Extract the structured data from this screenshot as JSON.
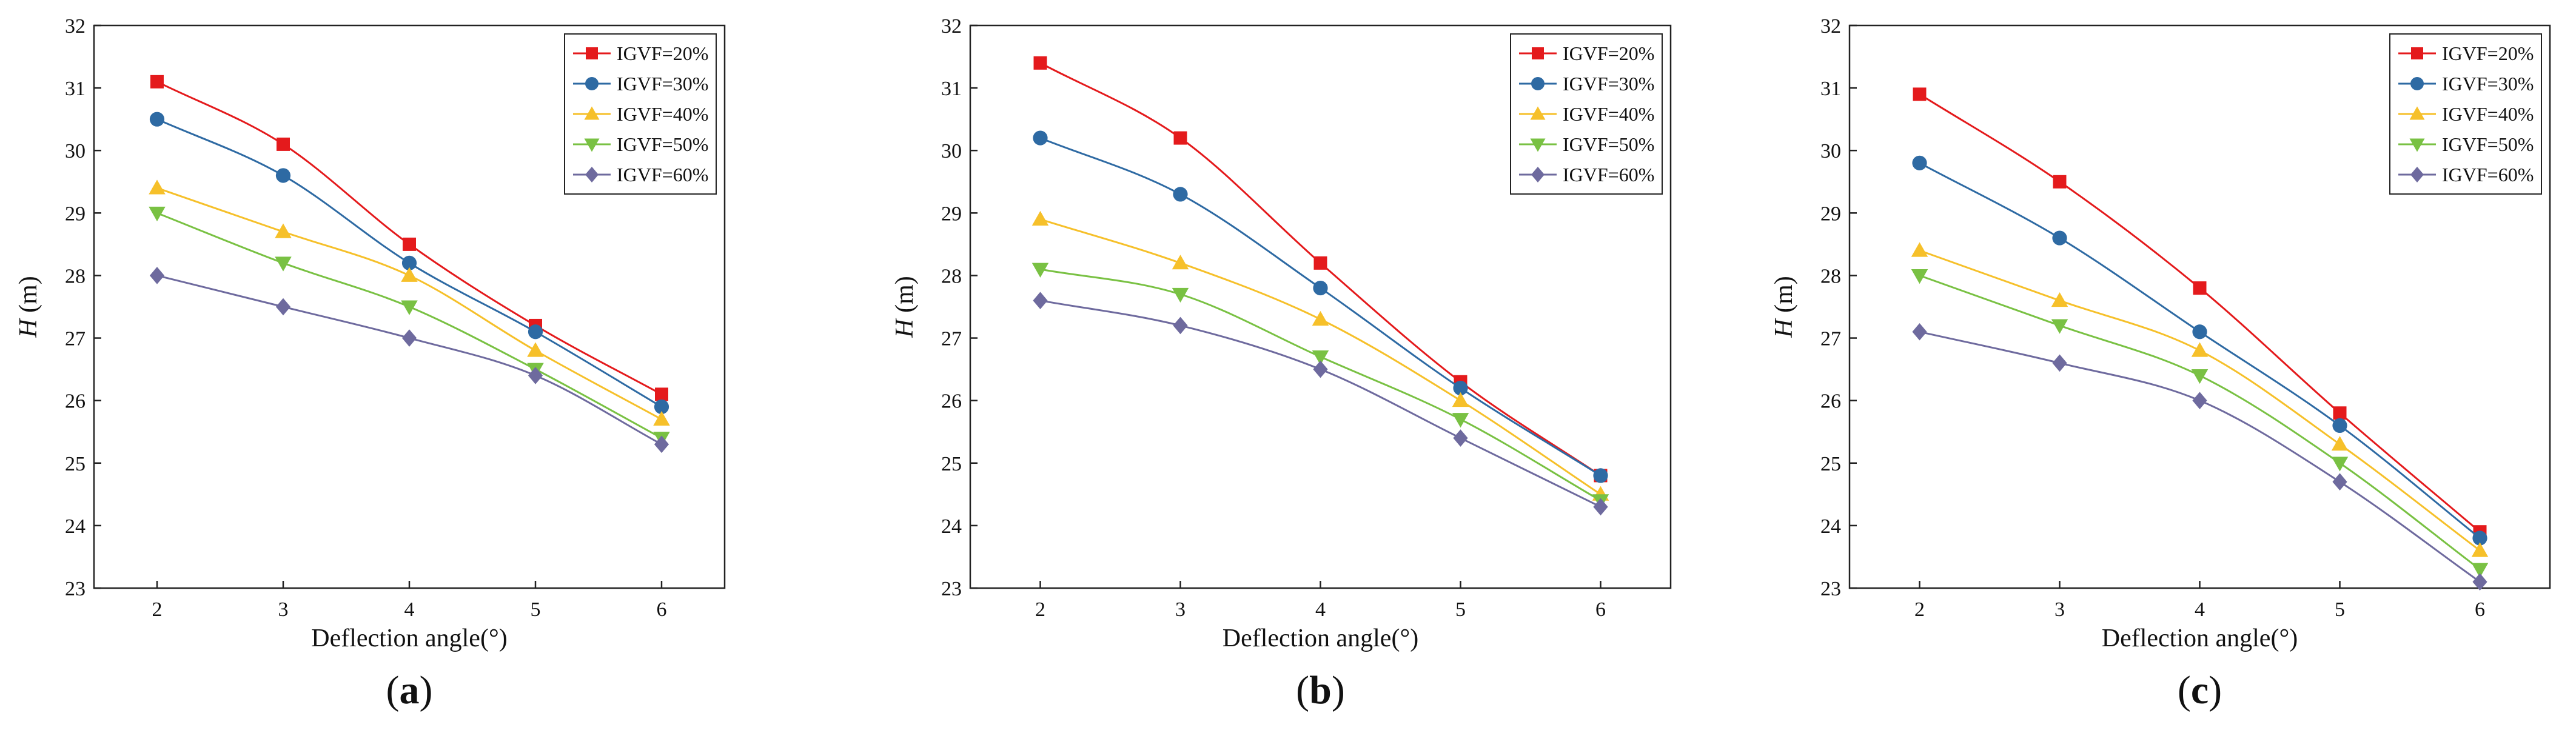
{
  "figure": {
    "panel_labels": [
      "a",
      "b",
      "c"
    ]
  },
  "series_styles": [
    {
      "name": "IGVF=20%",
      "color": "#e41a1c",
      "marker": "square"
    },
    {
      "name": "IGVF=30%",
      "color": "#2e6aa3",
      "marker": "circle"
    },
    {
      "name": "IGVF=40%",
      "color": "#f6c02a",
      "marker": "triangle-up"
    },
    {
      "name": "IGVF=50%",
      "color": "#79c143",
      "marker": "triangle-down"
    },
    {
      "name": "IGVF=60%",
      "color": "#6e6a9e",
      "marker": "diamond"
    }
  ],
  "chart_data": [
    {
      "type": "line",
      "panel": "a",
      "xlabel": "Deflection angle(°)",
      "ylabel_italic": "H",
      "ylabel_unit": "(m)",
      "x": [
        2,
        3,
        4,
        5,
        6
      ],
      "xlim": [
        1.5,
        6.5
      ],
      "ylim": [
        23,
        32
      ],
      "xticks": [
        2,
        3,
        4,
        5,
        6
      ],
      "yticks": [
        23,
        24,
        25,
        26,
        27,
        28,
        29,
        30,
        31,
        32
      ],
      "legend_position": "top-right",
      "series": [
        {
          "name": "IGVF=20%",
          "values": [
            31.1,
            30.1,
            28.5,
            27.2,
            26.1
          ]
        },
        {
          "name": "IGVF=30%",
          "values": [
            30.5,
            29.6,
            28.2,
            27.1,
            25.9
          ]
        },
        {
          "name": "IGVF=40%",
          "values": [
            29.4,
            28.7,
            28.0,
            26.8,
            25.7
          ]
        },
        {
          "name": "IGVF=50%",
          "values": [
            29.0,
            28.2,
            27.5,
            26.5,
            25.4
          ]
        },
        {
          "name": "IGVF=60%",
          "values": [
            28.0,
            27.5,
            27.0,
            26.4,
            25.3
          ]
        }
      ]
    },
    {
      "type": "line",
      "panel": "b",
      "xlabel": "Deflection angle(°)",
      "ylabel_italic": "H",
      "ylabel_unit": "(m)",
      "x": [
        2,
        3,
        4,
        5,
        6
      ],
      "xlim": [
        1.5,
        6.5
      ],
      "ylim": [
        23,
        32
      ],
      "xticks": [
        2,
        3,
        4,
        5,
        6
      ],
      "yticks": [
        23,
        24,
        25,
        26,
        27,
        28,
        29,
        30,
        31,
        32
      ],
      "legend_position": "top-right",
      "series": [
        {
          "name": "IGVF=20%",
          "values": [
            31.4,
            30.2,
            28.2,
            26.3,
            24.8
          ]
        },
        {
          "name": "IGVF=30%",
          "values": [
            30.2,
            29.3,
            27.8,
            26.2,
            24.8
          ]
        },
        {
          "name": "IGVF=40%",
          "values": [
            28.9,
            28.2,
            27.3,
            26.0,
            24.5
          ]
        },
        {
          "name": "IGVF=50%",
          "values": [
            28.1,
            27.7,
            26.7,
            25.7,
            24.4
          ]
        },
        {
          "name": "IGVF=60%",
          "values": [
            27.6,
            27.2,
            26.5,
            25.4,
            24.3
          ]
        }
      ]
    },
    {
      "type": "line",
      "panel": "c",
      "xlabel": "Deflection angle(°)",
      "ylabel_italic": "H",
      "ylabel_unit": "(m)",
      "x": [
        2,
        3,
        4,
        5,
        6
      ],
      "xlim": [
        1.5,
        6.5
      ],
      "ylim": [
        23,
        32
      ],
      "xticks": [
        2,
        3,
        4,
        5,
        6
      ],
      "yticks": [
        23,
        24,
        25,
        26,
        27,
        28,
        29,
        30,
        31,
        32
      ],
      "legend_position": "top-right",
      "series": [
        {
          "name": "IGVF=20%",
          "values": [
            30.9,
            29.5,
            27.8,
            25.8,
            23.9
          ]
        },
        {
          "name": "IGVF=30%",
          "values": [
            29.8,
            28.6,
            27.1,
            25.6,
            23.8
          ]
        },
        {
          "name": "IGVF=40%",
          "values": [
            28.4,
            27.6,
            26.8,
            25.3,
            23.6
          ]
        },
        {
          "name": "IGVF=50%",
          "values": [
            28.0,
            27.2,
            26.4,
            25.0,
            23.3
          ]
        },
        {
          "name": "IGVF=60%",
          "values": [
            27.1,
            26.6,
            26.0,
            24.7,
            23.1
          ]
        }
      ]
    }
  ]
}
